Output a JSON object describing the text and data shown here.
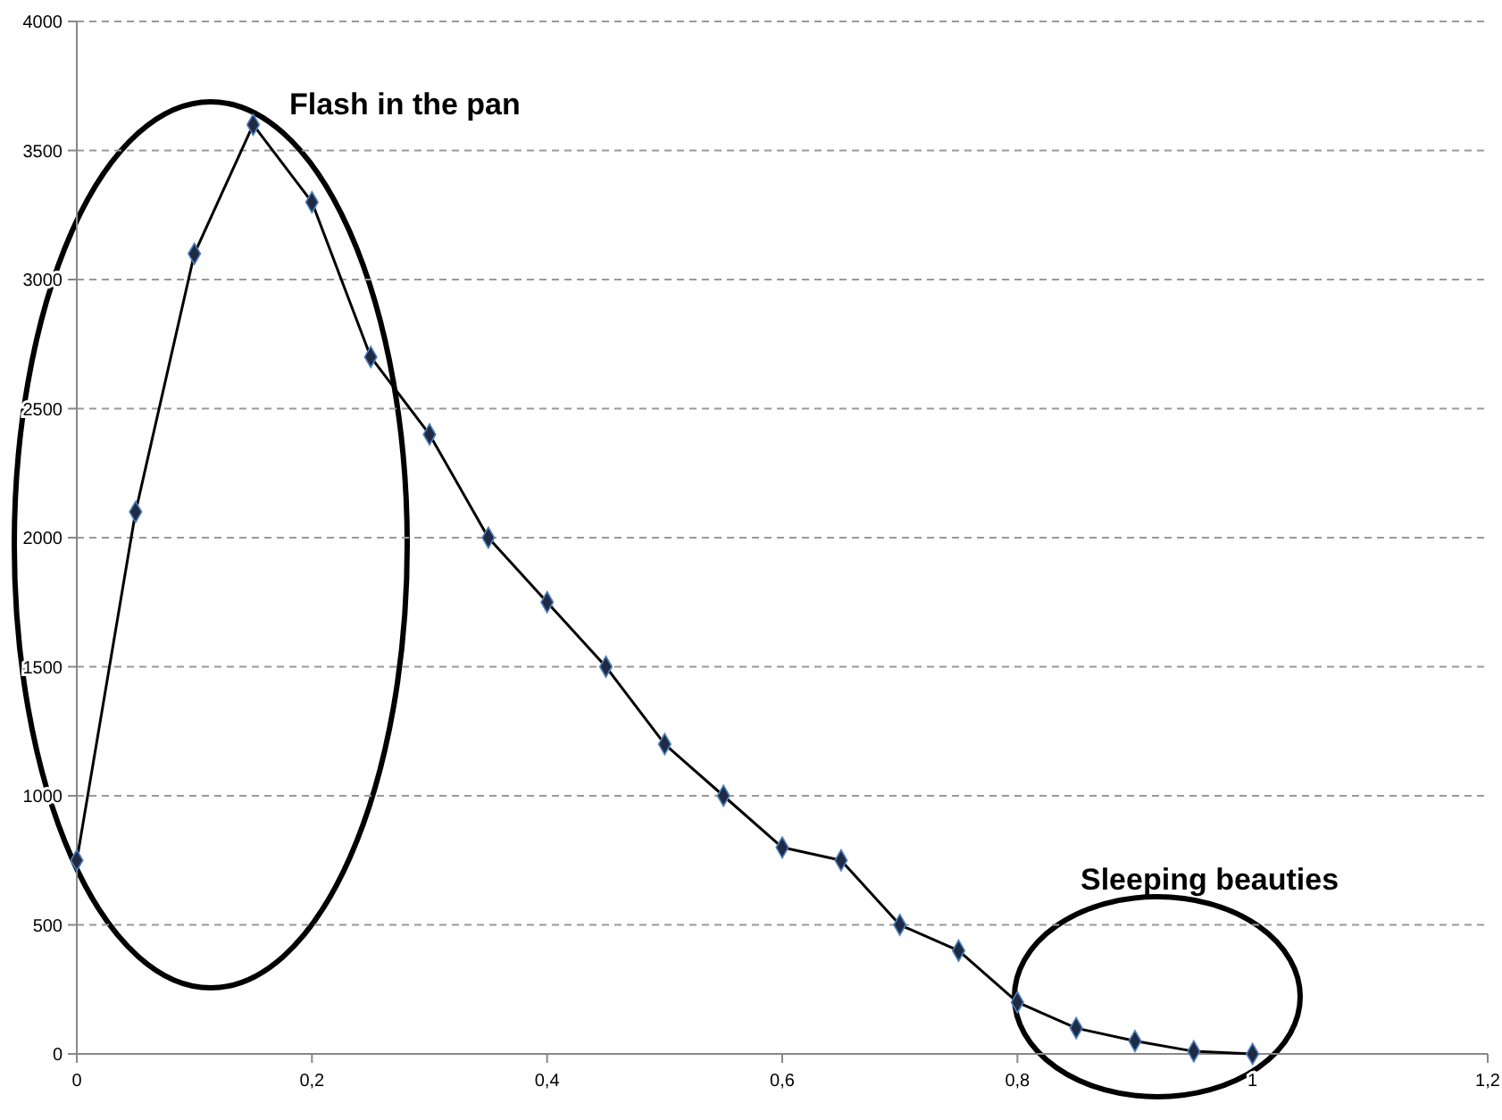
{
  "chart_data": {
    "type": "line",
    "x": [
      0,
      0.05,
      0.1,
      0.15,
      0.2,
      0.25,
      0.3,
      0.35,
      0.4,
      0.45,
      0.5,
      0.55,
      0.6,
      0.65,
      0.7,
      0.75,
      0.8,
      0.85,
      0.9,
      0.95,
      1
    ],
    "series": [
      {
        "color": "#000000",
        "values": [
          750,
          2100,
          3100,
          3600,
          3300,
          2700,
          2400,
          2000,
          1750,
          1500,
          1200,
          1000,
          800,
          750,
          500,
          400,
          200,
          100,
          50,
          10,
          0
        ]
      }
    ],
    "xlim": [
      0,
      1.2
    ],
    "xticks": [
      0,
      {
        "value": 0.2,
        "label": "0,2"
      },
      {
        "value": 0.4,
        "label": "0,4"
      },
      {
        "value": 0.6,
        "label": "0,6"
      },
      {
        "value": 0.8,
        "label": "0,8"
      },
      1,
      {
        "value": 1.2,
        "label": "1,2"
      }
    ],
    "ylim": [
      0,
      4000
    ],
    "yticks": [
      0,
      500,
      1000,
      1500,
      2000,
      2500,
      3000,
      3500,
      4000
    ],
    "grid": "y",
    "marker": "diamond",
    "line_style": "solid",
    "annotations": [
      "Flash in the pan",
      "Sleeping beauties"
    ]
  }
}
